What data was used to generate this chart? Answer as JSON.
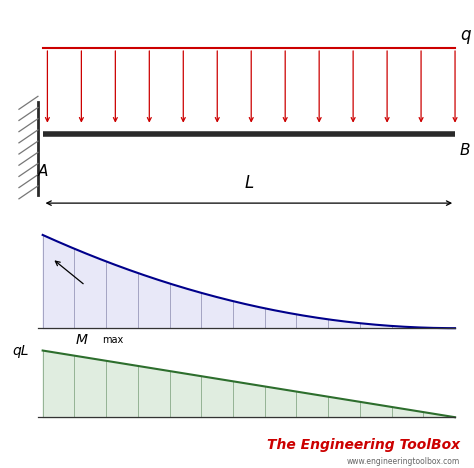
{
  "bg_color": "#ffffff",
  "beam_color": "#2a2a2a",
  "load_color": "#cc0000",
  "bmd_color": "#00008B",
  "sfd_color": "#2d6e2d",
  "hatch_color": "#777777",
  "label_color": "#000000",
  "brand_color": "#cc0000",
  "brand_text": "The Engineering ToolBox",
  "brand_sub": "www.engineeringtoolbox.com",
  "q_label": "q",
  "B_label": "B",
  "A_label": "A",
  "L_label": "L",
  "Mmax_label": "M",
  "Mmax_sub": "max",
  "qL_label": "qL",
  "num_arrows": 13,
  "num_vlines": 13,
  "beam_lw": 4,
  "arrow_mutation": 7
}
